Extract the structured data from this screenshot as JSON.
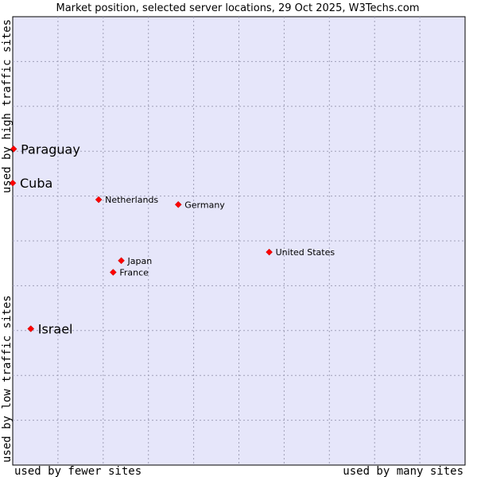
{
  "chart_data": {
    "type": "scatter",
    "title": "Market position, selected server locations, 29 Oct 2025, W3Techs.com",
    "xlabel_left": "used by fewer sites",
    "xlabel_right": "used by many sites",
    "ylabel_bottom": "used by low traffic sites",
    "ylabel_top": "used by high traffic sites",
    "xlim": [
      0,
      100
    ],
    "ylim": [
      0,
      100
    ],
    "grid": true,
    "background_color": "#e6e6fa",
    "point_color": "#ff0000",
    "points": [
      {
        "label": "Paraguay",
        "x": 0.2,
        "y": 70.5,
        "emphasis": "large"
      },
      {
        "label": "Cuba",
        "x": 0.0,
        "y": 62.9,
        "emphasis": "large"
      },
      {
        "label": "Netherlands",
        "x": 19.0,
        "y": 59.2,
        "emphasis": "small"
      },
      {
        "label": "Germany",
        "x": 36.6,
        "y": 58.1,
        "emphasis": "small"
      },
      {
        "label": "United States",
        "x": 56.7,
        "y": 47.5,
        "emphasis": "small"
      },
      {
        "label": "Japan",
        "x": 24.0,
        "y": 45.6,
        "emphasis": "small"
      },
      {
        "label": "France",
        "x": 22.2,
        "y": 43.0,
        "emphasis": "small"
      },
      {
        "label": "Israel",
        "x": 4.0,
        "y": 30.4,
        "emphasis": "large"
      }
    ]
  }
}
